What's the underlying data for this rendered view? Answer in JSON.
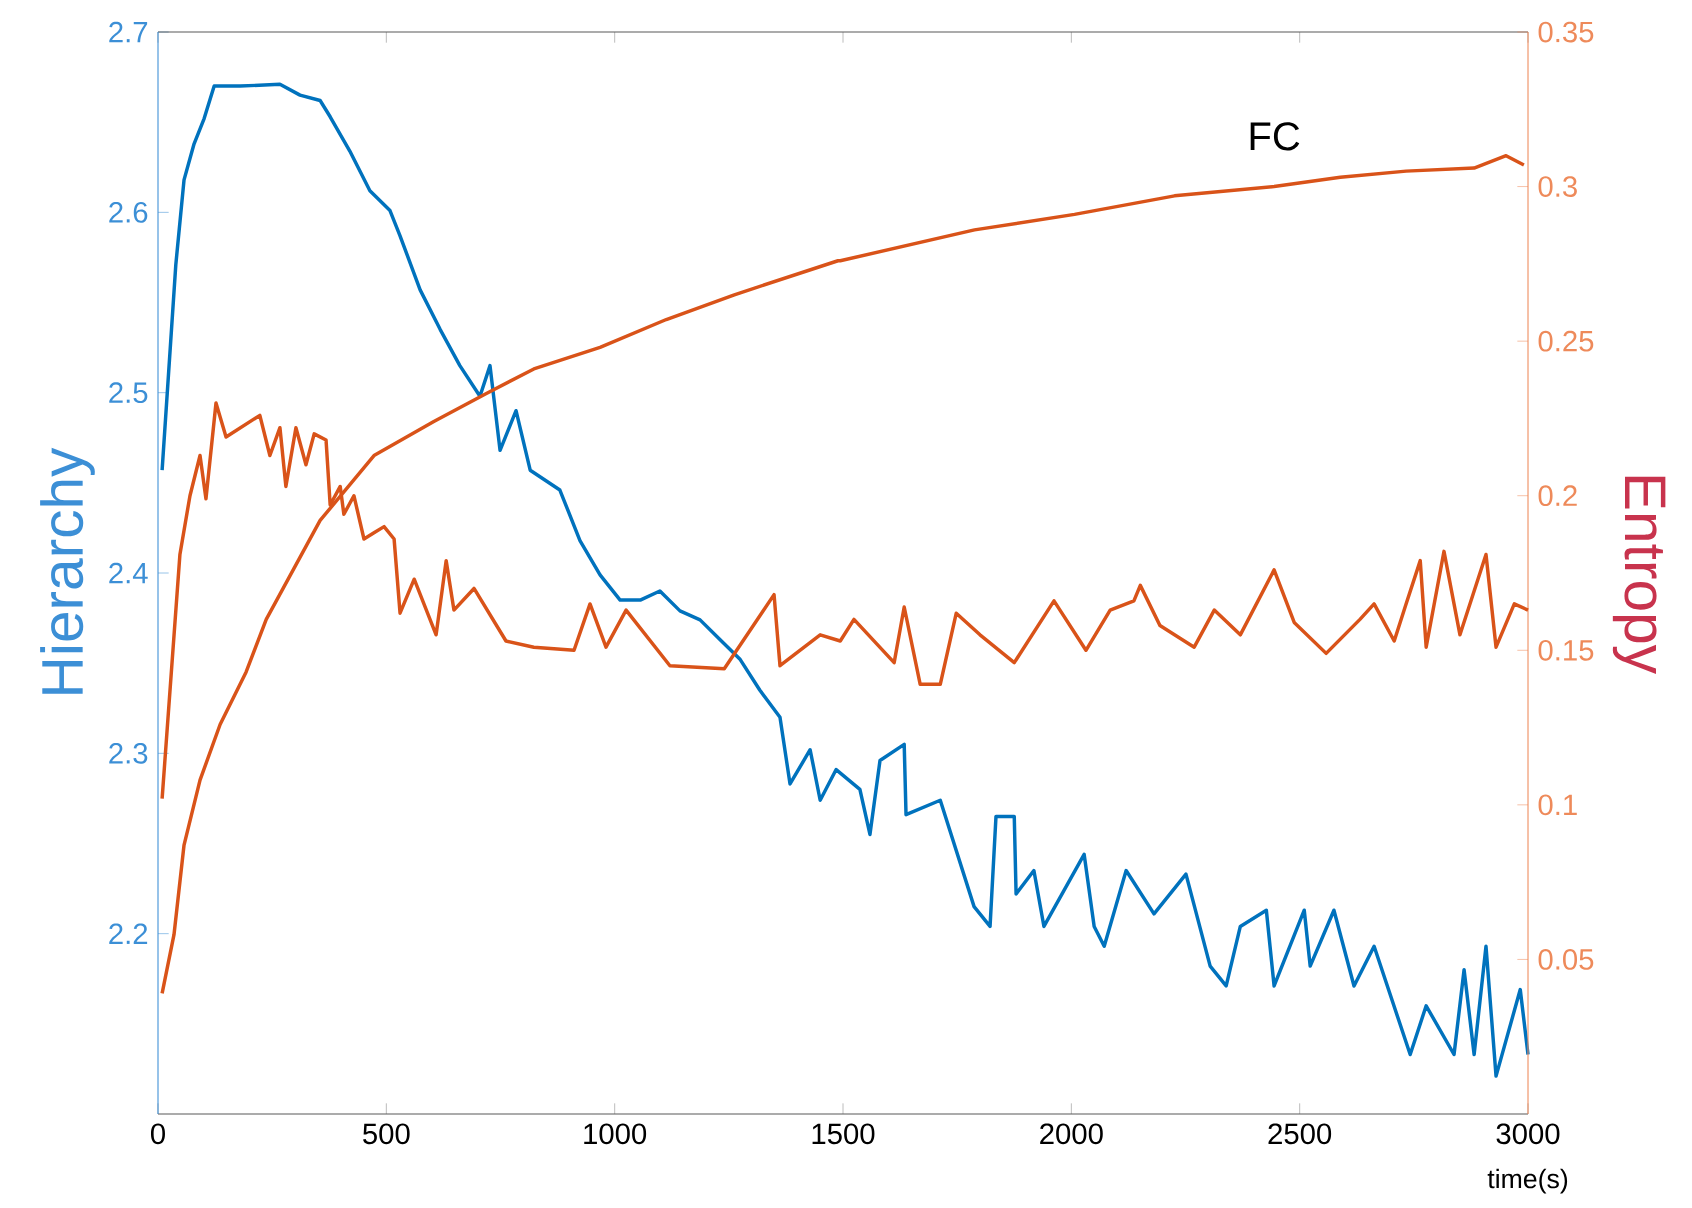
{
  "chart_data": {
    "type": "line",
    "xlabel": "time(s)",
    "ylabel": "Hierarchy",
    "y2label": "Entropy",
    "xlim": [
      0,
      3000
    ],
    "xticks": [
      0,
      500,
      1000,
      1500,
      2000,
      2500,
      3000
    ],
    "ylim": [
      2.1,
      2.7
    ],
    "yticks": [
      2.2,
      2.3,
      2.4,
      2.5,
      2.6,
      2.7
    ],
    "y2lim": [
      0,
      0.35
    ],
    "y2ticks": [
      0.05,
      0.1,
      0.15,
      0.2,
      0.25,
      0.3,
      0.35
    ],
    "series": [
      {
        "color": "#0072bd",
        "x": [
          9,
          39,
          57,
          79,
          101,
          123,
          180,
          267,
          311,
          355,
          377,
          420,
          464,
          508,
          530,
          574,
          618,
          661,
          705,
          727,
          749,
          784,
          815,
          880,
          924,
          968,
          1012,
          1056,
          1099,
          1143,
          1187,
          1231,
          1275,
          1318,
          1362,
          1384,
          1428,
          1450,
          1485,
          1537,
          1559,
          1581,
          1634,
          1638,
          1713,
          1787,
          1822,
          1835,
          1875,
          1879,
          1918,
          1940,
          2028,
          2050,
          2072,
          2120,
          2181,
          2251,
          2304,
          2339,
          2370,
          2427,
          2444,
          2510,
          2523,
          2575,
          2619,
          2663,
          2742,
          2777,
          2838,
          2860,
          2882,
          2908,
          2930,
          2983,
          3000
        ],
        "values": [
          2.457,
          2.571,
          2.618,
          2.638,
          2.652,
          2.67,
          2.67,
          2.671,
          2.665,
          2.662,
          2.653,
          2.634,
          2.612,
          2.601,
          2.587,
          2.557,
          2.535,
          2.515,
          2.498,
          2.515,
          2.468,
          2.49,
          2.457,
          2.446,
          2.418,
          2.399,
          2.385,
          2.385,
          2.39,
          2.379,
          2.374,
          2.363,
          2.352,
          2.335,
          2.32,
          2.283,
          2.302,
          2.274,
          2.291,
          2.28,
          2.255,
          2.296,
          2.305,
          2.266,
          2.274,
          2.215,
          2.204,
          2.265,
          2.265,
          2.222,
          2.235,
          2.204,
          2.244,
          2.204,
          2.193,
          2.235,
          2.211,
          2.233,
          2.182,
          2.171,
          2.204,
          2.213,
          2.171,
          2.213,
          2.182,
          2.213,
          2.171,
          2.193,
          2.133,
          2.16,
          2.133,
          2.18,
          2.133,
          2.193,
          2.121,
          2.169,
          2.133
        ]
      },
      {
        "color": "#d95319",
        "axis": "y2",
        "x": [
          9,
          48,
          70,
          92,
          105,
          127,
          149,
          223,
          245,
          267,
          280,
          302,
          324,
          342,
          368,
          377,
          399,
          407,
          429,
          451,
          473,
          495,
          517,
          530,
          561,
          609,
          631,
          648,
          692,
          762,
          823,
          911,
          946,
          981,
          1025,
          1121,
          1240,
          1349,
          1362,
          1450,
          1494,
          1524,
          1612,
          1634,
          1669,
          1713,
          1748,
          1800,
          1875,
          1962,
          2032,
          2085,
          2137,
          2151,
          2194,
          2269,
          2313,
          2370,
          2444,
          2488,
          2558,
          2632,
          2663,
          2707,
          2733,
          2764,
          2777,
          2816,
          2851,
          2908,
          2930,
          2970,
          3000
        ],
        "values": [
          0.102,
          0.181,
          0.2,
          0.213,
          0.199,
          0.23,
          0.219,
          0.226,
          0.213,
          0.222,
          0.203,
          0.222,
          0.21,
          0.22,
          0.218,
          0.197,
          0.203,
          0.194,
          0.2,
          0.186,
          0.188,
          0.19,
          0.186,
          0.162,
          0.173,
          0.155,
          0.179,
          0.163,
          0.17,
          0.153,
          0.151,
          0.15,
          0.165,
          0.151,
          0.163,
          0.145,
          0.144,
          0.168,
          0.145,
          0.155,
          0.153,
          0.16,
          0.146,
          0.164,
          0.139,
          0.139,
          0.162,
          0.155,
          0.146,
          0.166,
          0.15,
          0.163,
          0.166,
          0.171,
          0.158,
          0.151,
          0.163,
          0.155,
          0.176,
          0.159,
          0.149,
          0.16,
          0.165,
          0.153,
          0.165,
          0.179,
          0.151,
          0.182,
          0.155,
          0.181,
          0.151,
          0.165,
          0.163
        ]
      },
      {
        "name": "FC",
        "color": "#d95319",
        "axis": "y2",
        "x": [
          9,
          35,
          57,
          92,
          136,
          193,
          237,
          355,
          473,
          604,
          718,
          823,
          968,
          1113,
          1262,
          1489,
          1494,
          1788,
          2007,
          2226,
          2444,
          2589,
          2733,
          2882,
          2952,
          2991
        ],
        "values": [
          0.039,
          0.058,
          0.087,
          0.108,
          0.126,
          0.143,
          0.16,
          0.192,
          0.213,
          0.224,
          0.233,
          0.241,
          0.248,
          0.257,
          0.265,
          0.276,
          0.276,
          0.286,
          0.291,
          0.297,
          0.3,
          0.303,
          0.305,
          0.306,
          0.31,
          0.307
        ]
      }
    ]
  }
}
